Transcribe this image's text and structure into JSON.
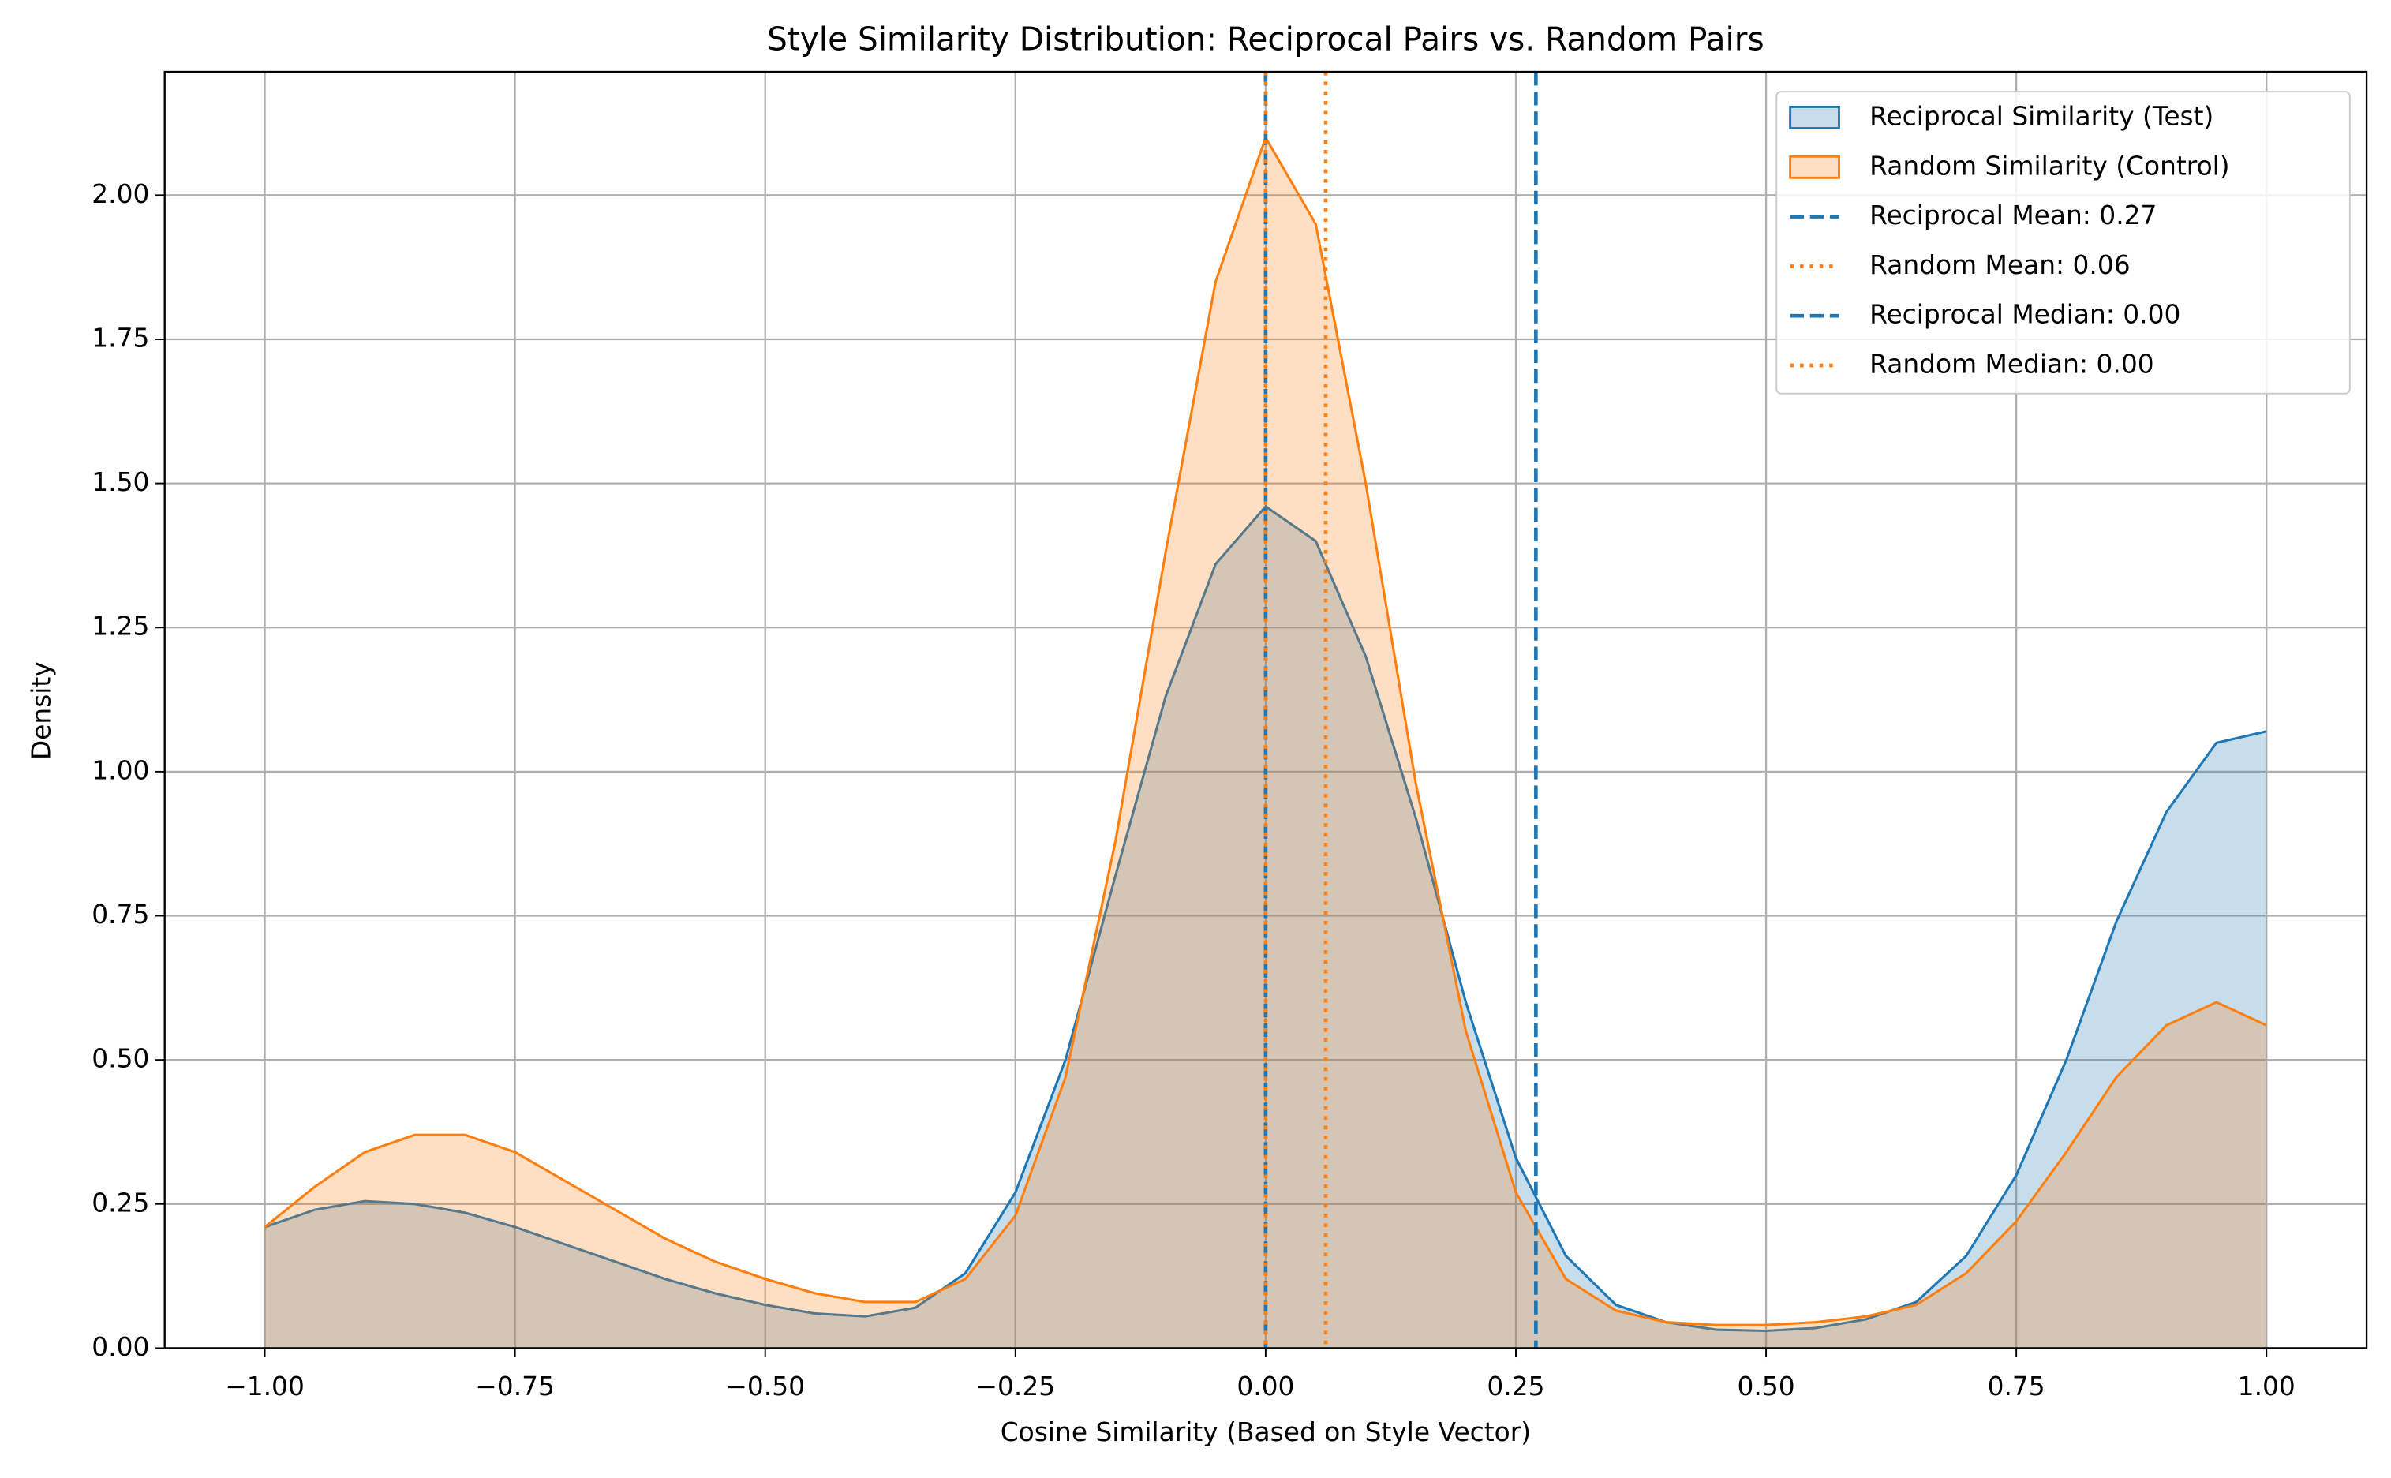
{
  "chart_data": {
    "type": "kde",
    "title": "Style Similarity Distribution: Reciprocal Pairs vs. Random Pairs",
    "xlabel": "Cosine Similarity (Based on Style Vector)",
    "ylabel": "Density",
    "x": [
      -1,
      -0.95,
      -0.9,
      -0.85,
      -0.8,
      -0.75,
      -0.7,
      -0.65,
      -0.6,
      -0.55,
      -0.5,
      -0.45,
      -0.4,
      -0.35,
      -0.3,
      -0.25,
      -0.2,
      -0.15,
      -0.1,
      -0.05,
      0,
      0.05,
      0.1,
      0.15,
      0.2,
      0.25,
      0.3,
      0.35,
      0.4,
      0.45,
      0.5,
      0.55,
      0.6,
      0.65,
      0.7,
      0.75,
      0.8,
      0.85,
      0.9,
      0.95,
      1
    ],
    "series": [
      {
        "name": "Reciprocal Similarity (Test)",
        "color": "#1f77b4",
        "values": [
          0.21,
          0.24,
          0.255,
          0.25,
          0.235,
          0.21,
          0.18,
          0.15,
          0.12,
          0.095,
          0.075,
          0.06,
          0.055,
          0.07,
          0.13,
          0.27,
          0.5,
          0.82,
          1.13,
          1.36,
          1.46,
          1.4,
          1.2,
          0.92,
          0.6,
          0.33,
          0.16,
          0.075,
          0.045,
          0.032,
          0.03,
          0.035,
          0.05,
          0.08,
          0.16,
          0.3,
          0.5,
          0.74,
          0.93,
          1.05,
          1.07
        ]
      },
      {
        "name": "Random Similarity (Control)",
        "color": "#ff7f0e",
        "values": [
          0.21,
          0.28,
          0.34,
          0.37,
          0.37,
          0.34,
          0.29,
          0.24,
          0.19,
          0.15,
          0.12,
          0.095,
          0.08,
          0.08,
          0.12,
          0.23,
          0.47,
          0.88,
          1.38,
          1.85,
          2.1,
          1.95,
          1.5,
          0.98,
          0.55,
          0.27,
          0.12,
          0.065,
          0.045,
          0.04,
          0.04,
          0.045,
          0.055,
          0.075,
          0.13,
          0.22,
          0.34,
          0.47,
          0.56,
          0.6,
          0.56
        ]
      }
    ],
    "vlines": [
      {
        "name": "Reciprocal Mean: 0.27",
        "value": 0.27,
        "color": "#1f77b4",
        "linestyle": "dashed"
      },
      {
        "name": "Random Mean: 0.06",
        "value": 0.06,
        "color": "#ff7f0e",
        "linestyle": "dotted"
      },
      {
        "name": "Reciprocal Median: 0.00",
        "value": 0,
        "color": "#1f77b4",
        "linestyle": "dashed"
      },
      {
        "name": "Random Median: 0.00",
        "value": 0,
        "color": "#ff7f0e",
        "linestyle": "dotted"
      }
    ],
    "xlim": [
      -1.1,
      1.1
    ],
    "ylim": [
      0,
      2.214
    ],
    "xticks": [
      {
        "value": -1,
        "label": "−1.00"
      },
      {
        "value": -0.75,
        "label": "−0.75"
      },
      {
        "value": -0.5,
        "label": "−0.50"
      },
      {
        "value": -0.25,
        "label": "−0.25"
      },
      {
        "value": 0,
        "label": "0.00"
      },
      {
        "value": 0.25,
        "label": "0.25"
      },
      {
        "value": 0.5,
        "label": "0.50"
      },
      {
        "value": 0.75,
        "label": "0.75"
      },
      {
        "value": 1,
        "label": "1.00"
      }
    ],
    "yticks": [
      {
        "value": 0,
        "label": "0.00"
      },
      {
        "value": 0.25,
        "label": "0.25"
      },
      {
        "value": 0.5,
        "label": "0.50"
      },
      {
        "value": 0.75,
        "label": "0.75"
      },
      {
        "value": 1,
        "label": "1.00"
      },
      {
        "value": 1.25,
        "label": "1.25"
      },
      {
        "value": 1.5,
        "label": "1.50"
      },
      {
        "value": 1.75,
        "label": "1.75"
      },
      {
        "value": 2,
        "label": "2.00"
      }
    ],
    "grid": true,
    "legend": "upper right"
  }
}
